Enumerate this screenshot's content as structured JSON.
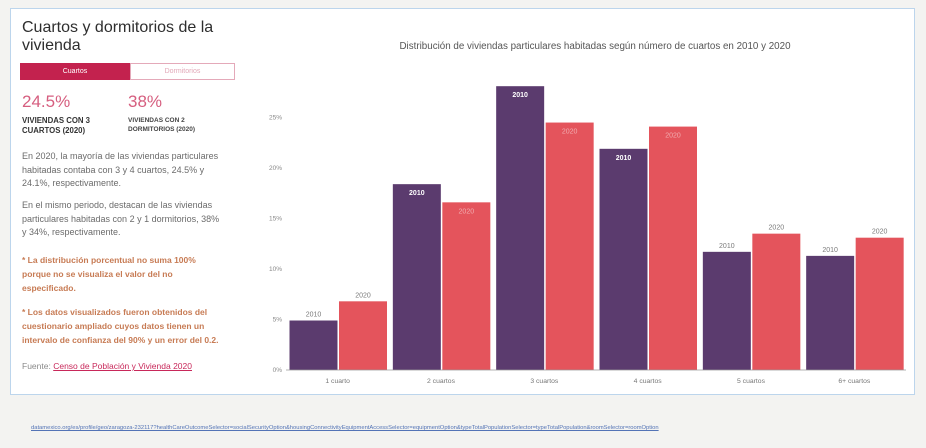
{
  "panel": {
    "title": "Cuartos y dormitorios de la vivienda",
    "tabs": [
      {
        "label": "Cuartos",
        "active": true
      },
      {
        "label": "Dormitorios",
        "active": false
      }
    ],
    "stats": [
      {
        "value": "24.5%",
        "label": "VIVIENDAS CON 3 CUARTOS (2020)"
      },
      {
        "value": "38%",
        "label": "VIVIENDAS CON 2 DORMITORIOS (2020)"
      }
    ],
    "paragraphs": [
      "En 2020, la mayoría de las viviendas particulares habitadas contaba con 3 y 4 cuartos, 24.5% y 24.1%, respectivamente.",
      "En el mismo periodo, destacan de las viviendas particulares habitadas con 2 y 1 dormitorios, 38% y 34%, respectivamente."
    ],
    "notes": [
      "* La distribución porcentual no suma 100% porque no se visualiza el valor del no especificado.",
      "* Los datos visualizados fueron obtenidos del cuestionario ampliado cuyos datos tienen un intervalo de confianza del 90% y un error del 0.2."
    ],
    "source": {
      "prefix": "Fuente:",
      "link_text": "Censo de Población y Vivienda 2020"
    }
  },
  "chart_data": {
    "type": "bar",
    "title": "Distribución de viviendas particulares habitadas según número de cuartos en 2010 y 2020",
    "categories": [
      "1 cuarto",
      "2 cuartos",
      "3 cuartos",
      "4 cuartos",
      "5 cuartos",
      "6+ cuartos"
    ],
    "series": [
      {
        "name": "2010",
        "values": [
          4.9,
          18.4,
          28.1,
          21.9,
          11.7,
          11.3
        ]
      },
      {
        "name": "2020",
        "values": [
          6.8,
          16.6,
          24.5,
          24.1,
          13.5,
          13.1
        ]
      }
    ],
    "ylim": [
      0,
      30
    ],
    "yticks": [
      0,
      5,
      10,
      15,
      20,
      25
    ],
    "ytick_labels": [
      "0%",
      "5%",
      "10%",
      "15%",
      "20%",
      "25%"
    ],
    "grid": false
  },
  "footer": {
    "url": "datamexico.org/es/profile/geo/zaragoza-232117?healthCareOutcomeSelector=socialSecurityOption&housingConnectivityEquipmentAccessSelector=equipmentOption&typeTotalPopulationSelector=typeTotalPopulation&roomSelector=roomOption"
  },
  "colors": {
    "accent": "#c3224e",
    "stat_value": "#d65e7f",
    "note": "#c77b54",
    "link": "#c8285a",
    "url": "#5474b6",
    "series_2010": "#5b3b6e",
    "series_2020": "#e4545c"
  }
}
